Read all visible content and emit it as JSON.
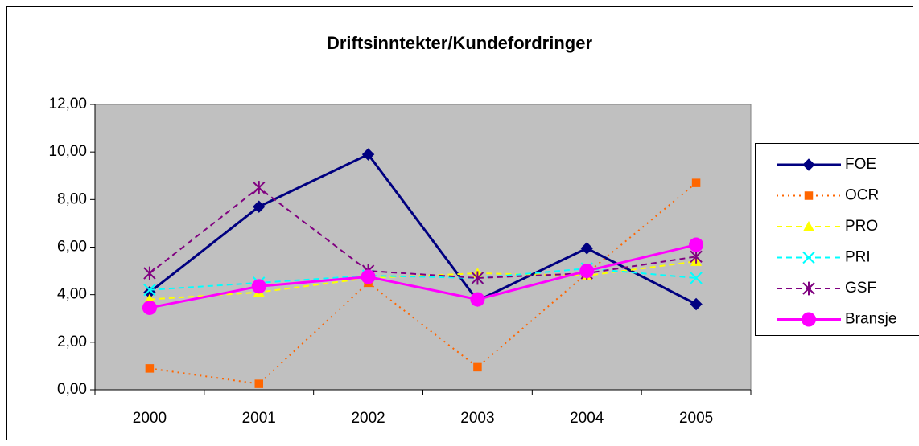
{
  "chart_data": {
    "type": "line",
    "title": "Driftsinntekter/Kundefordringer",
    "categories": [
      "2000",
      "2001",
      "2002",
      "2003",
      "2004",
      "2005"
    ],
    "series": [
      {
        "name": "FOE",
        "color": "#000080",
        "dash": "solid",
        "marker": "diamond",
        "values": [
          4.1,
          7.7,
          9.9,
          3.75,
          5.95,
          3.6
        ]
      },
      {
        "name": "OCR",
        "color": "#ff6600",
        "dash": "dotted",
        "marker": "square",
        "values": [
          0.9,
          0.25,
          4.5,
          0.95,
          4.9,
          8.7
        ]
      },
      {
        "name": "PRO",
        "color": "#ffff00",
        "dash": "dashed",
        "marker": "triangle",
        "values": [
          3.8,
          4.1,
          4.7,
          4.9,
          4.8,
          5.4
        ]
      },
      {
        "name": "PRI",
        "color": "#00ffff",
        "dash": "dashed",
        "marker": "x",
        "values": [
          4.2,
          4.5,
          4.8,
          4.7,
          5.1,
          4.7
        ]
      },
      {
        "name": "GSF",
        "color": "#800080",
        "dash": "dashed",
        "marker": "star",
        "values": [
          4.9,
          8.5,
          5.0,
          4.7,
          4.9,
          5.6
        ]
      },
      {
        "name": "Bransje",
        "color": "#ff00ff",
        "dash": "solid",
        "marker": "circle",
        "values": [
          3.45,
          4.35,
          4.75,
          3.8,
          5.0,
          6.1
        ]
      }
    ],
    "ylim": [
      0,
      12
    ],
    "yticks": [
      {
        "value": 0,
        "label": "0,00"
      },
      {
        "value": 2,
        "label": "2,00"
      },
      {
        "value": 4,
        "label": "4,00"
      },
      {
        "value": 6,
        "label": "6,00"
      },
      {
        "value": 8,
        "label": "8,00"
      },
      {
        "value": 10,
        "label": "10,00"
      },
      {
        "value": 12,
        "label": "12,00"
      }
    ],
    "plot_background": "#c0c0c0",
    "grid": false,
    "legend": "right"
  }
}
